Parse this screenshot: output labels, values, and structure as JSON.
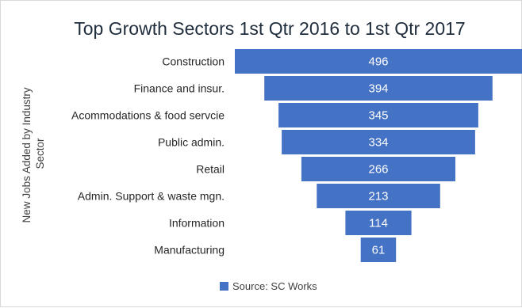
{
  "chart_data": {
    "type": "bar",
    "orientation": "horizontal",
    "style": "funnel",
    "title": "Top Growth Sectors 1st Qtr 2016 to 1st Qtr 2017",
    "xlabel": "",
    "ylabel_lines": [
      "New Jobs Added by  Industry",
      "Sector"
    ],
    "categories": [
      "Construction",
      "Finance and insur.",
      "Acommodations & food servcie",
      "Public admin.",
      "Retail",
      "Admin. Support & waste mgn.",
      "Information",
      "Manufacturing"
    ],
    "series": [
      {
        "name": "Source: SC Works",
        "values": [
          496,
          394,
          345,
          334,
          266,
          213,
          114,
          61
        ],
        "color": "#4472c4"
      }
    ],
    "xlim": [
      0,
      496
    ],
    "grid": false,
    "legend_position": "bottom",
    "value_label_color": "#ffffff"
  }
}
